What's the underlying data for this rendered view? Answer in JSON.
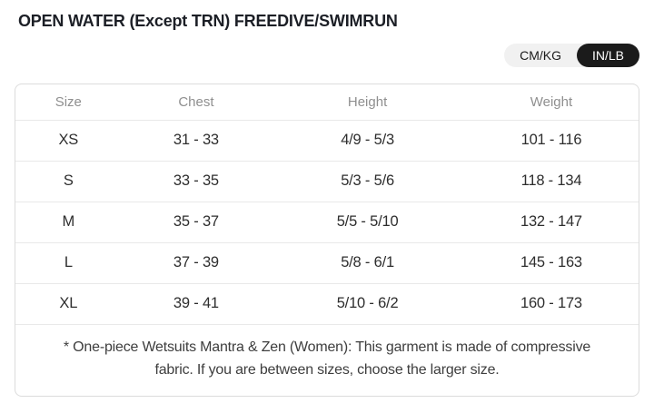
{
  "page": {
    "title": "OPEN WATER (Except TRN) FREEDIVE/SWIMRUN"
  },
  "unit_toggle": {
    "options": [
      {
        "label": "CM/KG",
        "active": false
      },
      {
        "label": "IN/LB",
        "active": true
      }
    ]
  },
  "table": {
    "columns": [
      "Size",
      "Chest",
      "Height",
      "Weight"
    ],
    "rows": [
      {
        "size": "XS",
        "chest": "31 - 33",
        "height": "4/9 - 5/3",
        "weight": "101 - 116"
      },
      {
        "size": "S",
        "chest": "33 - 35",
        "height": "5/3 - 5/6",
        "weight": "118 - 134"
      },
      {
        "size": "M",
        "chest": "35 - 37",
        "height": "5/5 - 5/10",
        "weight": "132 - 147"
      },
      {
        "size": "L",
        "chest": "37 - 39",
        "height": "5/8 - 6/1",
        "weight": "145 - 163"
      },
      {
        "size": "XL",
        "chest": "39 - 41",
        "height": "5/10 - 6/2",
        "weight": "160 - 173"
      }
    ],
    "note": "* One-piece Wetsuits Mantra & Zen (Women): This garment is made of compressive fabric. If you are between sizes, choose the larger size."
  },
  "colors": {
    "accent_dark": "#1b1b1b",
    "toggle_track": "#f1f1f1",
    "card_border": "#dcdcdc",
    "row_divider": "#e9e9e9",
    "header_text": "#8f8f8f",
    "body_text": "#2e2e2e"
  }
}
